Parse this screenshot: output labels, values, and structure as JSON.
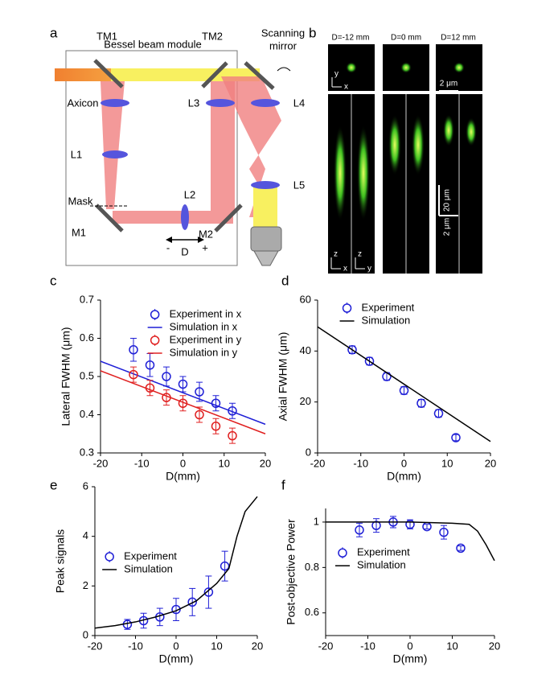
{
  "panel_labels": [
    "a",
    "b",
    "c",
    "d",
    "e",
    "f"
  ],
  "diagram": {
    "module_title": "Bessel beam module",
    "tm1": "TM1",
    "tm2": "TM2",
    "scanning_mirror": [
      "Scanning",
      "mirror"
    ],
    "axicon": "Axicon",
    "l1": "L1",
    "l2": "L2",
    "l3": "L3",
    "l4": "L4",
    "l5": "L5",
    "mask": "Mask",
    "m1": "M1",
    "m2": "M2",
    "d": "D",
    "minus": "-",
    "plus": "+"
  },
  "images": {
    "columns": [
      "D=-12 mm",
      "D=0 mm",
      "D=12 mm"
    ],
    "axis_y": "y",
    "axis_x": "x",
    "scale_lateral": "2 μm",
    "scale_axial": "20 μm",
    "scale_lateral_2": "2 μm",
    "axis_z1": "z",
    "axis_x2": "x",
    "axis_z2": "z",
    "axis_y2": "y"
  },
  "chart_data": [
    {
      "type": "errorbar",
      "xlabel": "D(mm)",
      "ylabel": "Lateral FWHM (μm)",
      "xlim": [
        -20,
        20
      ],
      "xticks": [
        -20,
        -10,
        0,
        10,
        20
      ],
      "ylim": [
        0.3,
        0.7
      ],
      "yticks": [
        0.3,
        0.4,
        0.5,
        0.6,
        0.7
      ],
      "legend": "upper center",
      "series": [
        {
          "name": "Experiment in x",
          "color": "#1f1fd6",
          "x": [
            -12,
            -8,
            -4,
            0,
            4,
            8,
            12
          ],
          "values": [
            0.57,
            0.53,
            0.5,
            0.48,
            0.46,
            0.43,
            0.41
          ],
          "errors": [
            0.03,
            0.03,
            0.025,
            0.02,
            0.025,
            0.02,
            0.02
          ]
        },
        {
          "name": "Simulation in x",
          "color": "#1f1fd6",
          "x": [
            -20,
            20
          ],
          "values": [
            0.54,
            0.375
          ]
        },
        {
          "name": "Experiment in y",
          "color": "#e02020",
          "x": [
            -12,
            -8,
            -4,
            0,
            4,
            8,
            12
          ],
          "values": [
            0.505,
            0.47,
            0.445,
            0.43,
            0.4,
            0.37,
            0.345
          ],
          "errors": [
            0.02,
            0.02,
            0.02,
            0.02,
            0.02,
            0.02,
            0.02
          ]
        },
        {
          "name": "Simulation in y",
          "color": "#e02020",
          "x": [
            -20,
            20
          ],
          "values": [
            0.515,
            0.35
          ]
        }
      ]
    },
    {
      "type": "errorbar",
      "xlabel": "D(mm)",
      "ylabel": "Axial FWHM (μm)",
      "xlim": [
        -20,
        20
      ],
      "xticks": [
        -20,
        -10,
        0,
        10,
        20
      ],
      "ylim": [
        0,
        60
      ],
      "yticks": [
        0,
        20,
        40,
        60
      ],
      "legend": "upper left",
      "series": [
        {
          "name": "Experiment",
          "color": "#1f1fd6",
          "x": [
            -12,
            -8,
            -4,
            0,
            4,
            8,
            12
          ],
          "values": [
            40.5,
            36,
            30,
            24.5,
            19.5,
            15.5,
            6
          ],
          "errors": [
            1.5,
            1.5,
            1.5,
            1.5,
            1.5,
            1.5,
            1.2
          ]
        },
        {
          "name": "Simulation",
          "color": "#000000",
          "x": [
            -20,
            20
          ],
          "values": [
            49.5,
            4.5
          ]
        }
      ]
    },
    {
      "type": "errorbar",
      "xlabel": "D(mm)",
      "ylabel": "Peak signals",
      "xlim": [
        -20,
        20
      ],
      "xticks": [
        -20,
        -10,
        0,
        10,
        20
      ],
      "ylim": [
        0,
        6
      ],
      "yticks": [
        0,
        2,
        4,
        6
      ],
      "legend": "center left",
      "series": [
        {
          "name": "Experiment",
          "color": "#1f1fd6",
          "x": [
            -12,
            -8,
            -4,
            0,
            4,
            8,
            12
          ],
          "values": [
            0.45,
            0.6,
            0.75,
            1.05,
            1.35,
            1.75,
            2.8
          ],
          "errors": [
            0.2,
            0.3,
            0.35,
            0.45,
            0.55,
            0.65,
            0.6
          ]
        },
        {
          "name": "Simulation",
          "color": "#000000",
          "x": [
            -20,
            -15,
            -10,
            -5,
            0,
            5,
            10,
            13,
            15,
            17,
            20
          ],
          "values": [
            0.3,
            0.4,
            0.55,
            0.75,
            1,
            1.4,
            2.1,
            2.7,
            4,
            5,
            5.6
          ]
        }
      ]
    },
    {
      "type": "errorbar",
      "xlabel": "D(mm)",
      "ylabel": "Post-objective Power",
      "xlim": [
        -20,
        20
      ],
      "xticks": [
        -20,
        -10,
        0,
        10,
        20
      ],
      "ylim": [
        0.5,
        1.06
      ],
      "yticks": [
        0.6,
        0.8,
        1
      ],
      "legend": "lower left",
      "series": [
        {
          "name": "Experiment",
          "color": "#1f1fd6",
          "x": [
            -12,
            -8,
            -4,
            0,
            4,
            8,
            12
          ],
          "values": [
            0.965,
            0.985,
            1,
            0.99,
            0.98,
            0.955,
            0.885
          ],
          "errors": [
            0.03,
            0.03,
            0.025,
            0.02,
            0.01,
            0.03,
            0.01
          ]
        },
        {
          "name": "Simulation",
          "color": "#000000",
          "x": [
            -20,
            -10,
            0,
            10,
            14,
            16,
            18,
            20
          ],
          "values": [
            1,
            1,
            1,
            0.995,
            0.99,
            0.96,
            0.9,
            0.83
          ]
        }
      ]
    }
  ]
}
